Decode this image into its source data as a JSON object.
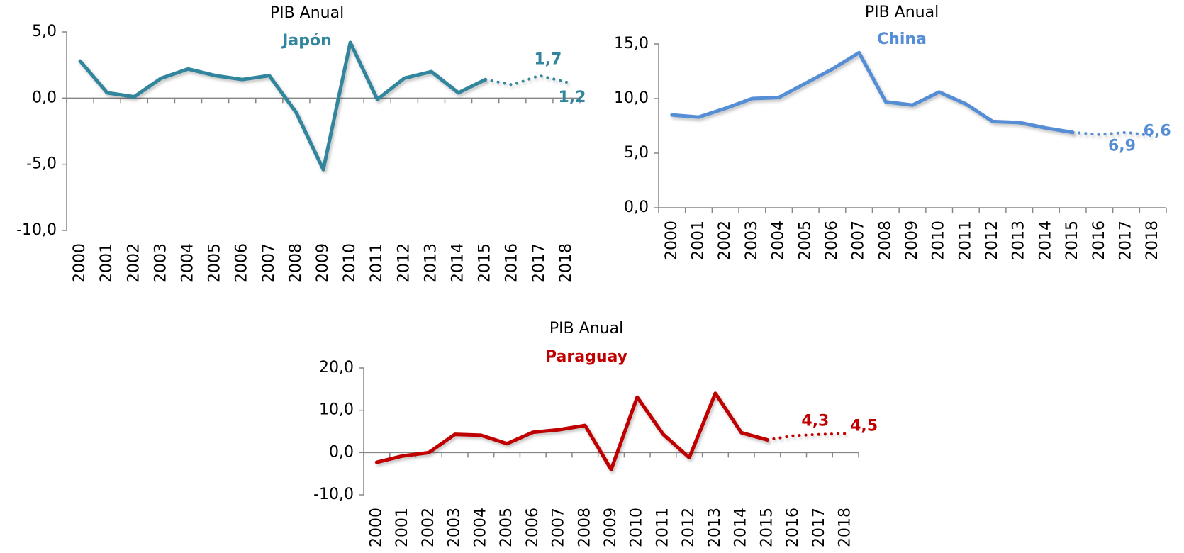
{
  "chart_data": [
    {
      "type": "line",
      "title": "PIB Anual",
      "subtitle": "Japón",
      "subtitle_color": "#31859c",
      "categories": [
        "2000",
        "2001",
        "2002",
        "2003",
        "2004",
        "2005",
        "2006",
        "2007",
        "2008",
        "2009",
        "2010",
        "2011",
        "2012",
        "2013",
        "2014",
        "2015",
        "2016",
        "2017",
        "2018"
      ],
      "series": [
        {
          "color": "#31859c",
          "values": [
            2.8,
            0.4,
            0.1,
            1.5,
            2.2,
            1.7,
            1.4,
            1.7,
            -1.1,
            -5.4,
            4.2,
            -0.1,
            1.5,
            2.0,
            0.4,
            1.4,
            null,
            null,
            null
          ]
        },
        {
          "color": "#31859c",
          "dashed": true,
          "values": [
            null,
            null,
            null,
            null,
            null,
            null,
            null,
            null,
            null,
            null,
            null,
            null,
            null,
            null,
            null,
            1.4,
            1.0,
            1.7,
            1.2
          ],
          "value_labels": [
            null,
            null,
            null,
            null,
            null,
            null,
            null,
            null,
            null,
            null,
            null,
            null,
            null,
            null,
            null,
            null,
            null,
            "1,7",
            "1,2"
          ]
        }
      ],
      "ylim": [
        -10,
        5
      ],
      "yticks": [
        {
          "value": -10,
          "label": "-10,0"
        },
        {
          "value": -5,
          "label": "-5,0"
        },
        {
          "value": 0,
          "label": "0,0"
        },
        {
          "value": 5,
          "label": "5,0"
        }
      ]
    },
    {
      "type": "line",
      "title": "PIB Anual",
      "subtitle": "China",
      "subtitle_color": "#558ed5",
      "categories": [
        "2000",
        "2001",
        "2002",
        "2003",
        "2004",
        "2005",
        "2006",
        "2007",
        "2008",
        "2009",
        "2010",
        "2011",
        "2012",
        "2013",
        "2014",
        "2015",
        "2016",
        "2017",
        "2018"
      ],
      "series": [
        {
          "color": "#558ed5",
          "values": [
            8.5,
            8.3,
            9.1,
            10.0,
            10.1,
            11.4,
            12.7,
            14.2,
            9.7,
            9.4,
            10.6,
            9.5,
            7.9,
            7.8,
            7.3,
            6.9,
            null,
            null,
            null
          ]
        },
        {
          "color": "#558ed5",
          "dashed": true,
          "values": [
            null,
            null,
            null,
            null,
            null,
            null,
            null,
            null,
            null,
            null,
            null,
            null,
            null,
            null,
            null,
            6.9,
            6.7,
            6.9,
            6.6
          ],
          "value_labels": [
            null,
            null,
            null,
            null,
            null,
            null,
            null,
            null,
            null,
            null,
            null,
            null,
            null,
            null,
            null,
            null,
            null,
            "6,9",
            "6,6"
          ]
        }
      ],
      "ylim": [
        0,
        15
      ],
      "yticks": [
        {
          "value": 0,
          "label": "0,0"
        },
        {
          "value": 5,
          "label": "5,0"
        },
        {
          "value": 10,
          "label": "10,0"
        },
        {
          "value": 15,
          "label": "15,0"
        }
      ]
    },
    {
      "type": "line",
      "title": "PIB Anual",
      "subtitle": "Paraguay",
      "subtitle_color": "#c00000",
      "categories": [
        "2000",
        "2001",
        "2002",
        "2003",
        "2004",
        "2005",
        "2006",
        "2007",
        "2008",
        "2009",
        "2010",
        "2011",
        "2012",
        "2013",
        "2014",
        "2015",
        "2016",
        "2017",
        "2018"
      ],
      "series": [
        {
          "color": "#c00000",
          "values": [
            -2.3,
            -0.8,
            0.0,
            4.3,
            4.1,
            2.1,
            4.8,
            5.4,
            6.4,
            -4.0,
            13.1,
            4.3,
            -1.2,
            14.0,
            4.7,
            3.0,
            null,
            null,
            null
          ]
        },
        {
          "color": "#c00000",
          "dashed": true,
          "values": [
            null,
            null,
            null,
            null,
            null,
            null,
            null,
            null,
            null,
            null,
            null,
            null,
            null,
            null,
            null,
            3.0,
            4.0,
            4.3,
            4.5
          ],
          "value_labels": [
            null,
            null,
            null,
            null,
            null,
            null,
            null,
            null,
            null,
            null,
            null,
            null,
            null,
            null,
            null,
            null,
            null,
            "4,3",
            "4,5"
          ]
        }
      ],
      "ylim": [
        -10,
        20
      ],
      "yticks": [
        {
          "value": -10,
          "label": "-10,0"
        },
        {
          "value": 0,
          "label": "0,0"
        },
        {
          "value": 10,
          "label": "10,0"
        },
        {
          "value": 20,
          "label": "20,0"
        }
      ]
    }
  ]
}
